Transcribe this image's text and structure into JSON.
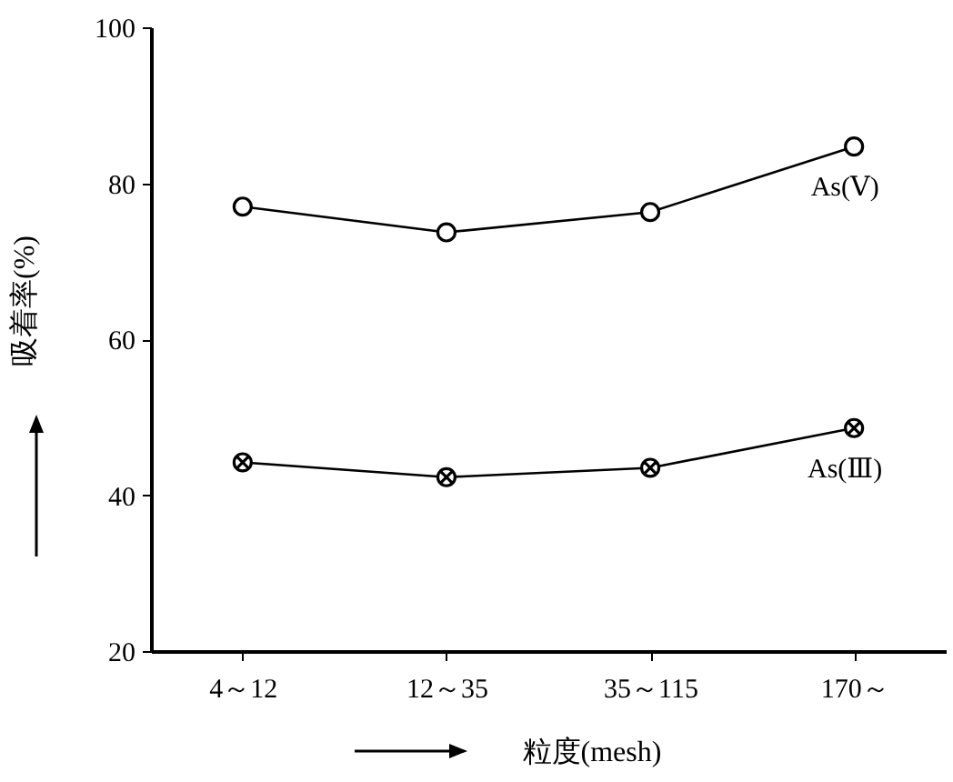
{
  "chart_data": {
    "type": "line",
    "xlabel": "粒度(mesh)",
    "ylabel": "吸着率(%)",
    "categories": [
      "4～12",
      "12～35",
      "35～115",
      "170～"
    ],
    "series": [
      {
        "name": "As(Ⅴ)",
        "color": "#000000",
        "marker": "circle",
        "values": [
          77,
          73.7,
          76.3,
          84.7
        ]
      },
      {
        "name": "As(Ⅲ)",
        "color": "#000000",
        "marker": "cross",
        "values": [
          44.2,
          42.3,
          43.5,
          48.6
        ]
      }
    ],
    "ylim": [
      20,
      100
    ],
    "yticks": [
      20,
      40,
      60,
      80,
      100
    ]
  }
}
